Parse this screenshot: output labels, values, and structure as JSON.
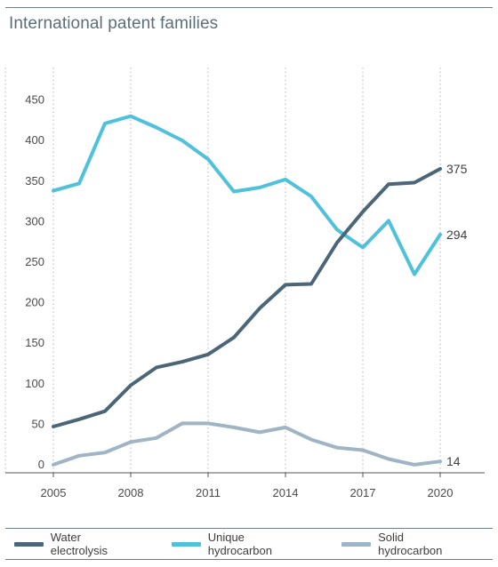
{
  "title": "International patent families",
  "colors": {
    "water_electrolysis": "#4b6678",
    "unique_hydrocarbon": "#4fc1db",
    "solid_hydrocarbon": "#9fb4c4",
    "grid": "#b5b5b5",
    "axis": "#555555"
  },
  "legend": [
    {
      "label": "Water electrolysis",
      "color": "#4b6678"
    },
    {
      "label": "Unique hydrocarbon",
      "color": "#4fc1db"
    },
    {
      "label": "Solid hydrocarbon",
      "color": "#9fb4c4"
    }
  ],
  "chart_data": {
    "type": "line",
    "title": "International patent families",
    "x": [
      2005,
      2006,
      2007,
      2008,
      2009,
      2010,
      2011,
      2012,
      2013,
      2014,
      2015,
      2016,
      2017,
      2018,
      2019,
      2020
    ],
    "xticks": [
      2005,
      2008,
      2011,
      2014,
      2017,
      2020
    ],
    "yticks": [
      0,
      50,
      100,
      150,
      200,
      250,
      300,
      350,
      400,
      450
    ],
    "xlim": [
      2005,
      2020
    ],
    "ylim": [
      0,
      500
    ],
    "grid": "vertical dotted at x ticks",
    "series": [
      {
        "name": "Water electrolysis",
        "values": [
          57,
          66,
          76,
          108,
          130,
          137,
          146,
          167,
          203,
          232,
          233,
          284,
          322,
          356,
          358,
          375
        ],
        "end_label": "375"
      },
      {
        "name": "Unique hydrocarbon",
        "values": [
          348,
          357,
          431,
          440,
          426,
          410,
          387,
          347,
          352,
          362,
          341,
          300,
          278,
          311,
          245,
          294
        ],
        "end_label": "294"
      },
      {
        "name": "Solid hydrocarbon",
        "values": [
          10,
          21,
          25,
          38,
          43,
          61,
          61,
          56,
          50,
          56,
          41,
          31,
          28,
          17,
          10,
          14
        ],
        "end_label": "14"
      }
    ]
  }
}
